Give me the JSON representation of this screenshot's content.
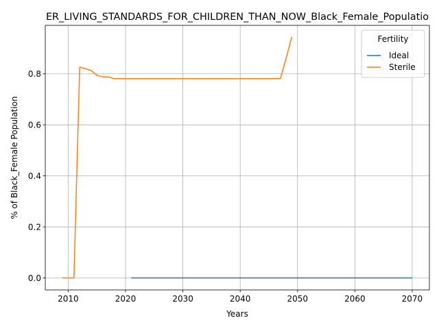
{
  "chart_data": {
    "type": "line",
    "title": "ER_LIVING_STANDARDS_FOR_CHILDREN_THAN_NOW_Black_Female_Populatio",
    "xlabel": "Years",
    "ylabel": "% of Black_Female Population",
    "xlim": [
      2006,
      2073
    ],
    "ylim": [
      -0.047,
      0.99
    ],
    "xticks": [
      2010,
      2020,
      2030,
      2040,
      2050,
      2060,
      2070
    ],
    "yticks": [
      0.0,
      0.2,
      0.4,
      0.6,
      0.8
    ],
    "ytick_labels": [
      "0.0",
      "0.2",
      "0.4",
      "0.6",
      "0.8"
    ],
    "grid": true,
    "legend": {
      "title": "Fertility",
      "position": "top-right"
    },
    "series": [
      {
        "name": "Ideal",
        "color": "#1f77b4",
        "x": [
          2021,
          2030,
          2040,
          2050,
          2060,
          2070
        ],
        "y": [
          0.0,
          0.0,
          0.0,
          0.0,
          0.0,
          0.0
        ]
      },
      {
        "name": "Sterile",
        "color": "#ff7f0e",
        "x": [
          2009,
          2010,
          2011,
          2012,
          2013,
          2014,
          2015,
          2016,
          2017,
          2018,
          2019,
          2020,
          2025,
          2030,
          2035,
          2040,
          2045,
          2047,
          2048,
          2049
        ],
        "y": [
          0.0,
          0.0,
          0.0,
          0.826,
          0.82,
          0.813,
          0.794,
          0.788,
          0.788,
          0.781,
          0.781,
          0.781,
          0.781,
          0.781,
          0.781,
          0.781,
          0.781,
          0.781,
          0.86,
          0.945
        ]
      }
    ]
  }
}
